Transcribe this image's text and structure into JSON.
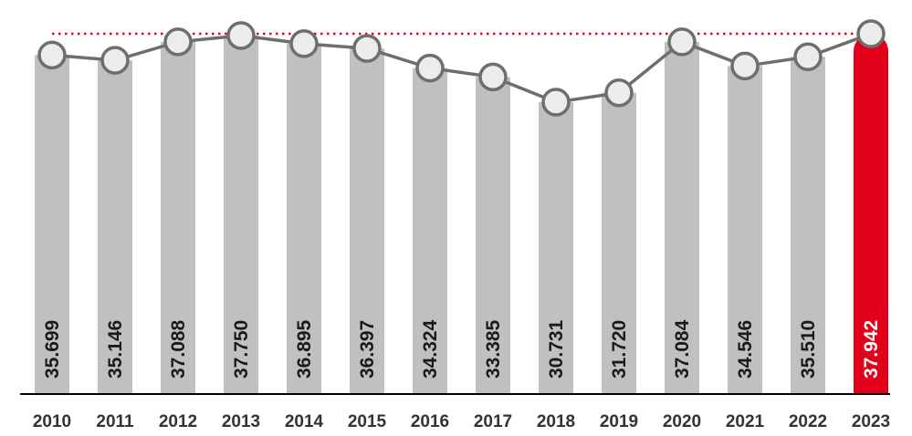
{
  "chart_data": {
    "type": "bar",
    "title": "",
    "xlabel": "",
    "ylabel": "",
    "categories": [
      "2010",
      "2011",
      "2012",
      "2013",
      "2014",
      "2015",
      "2016",
      "2017",
      "2018",
      "2019",
      "2020",
      "2021",
      "2022",
      "2023"
    ],
    "values": [
      35699,
      35146,
      37088,
      37750,
      36895,
      36397,
      34324,
      33385,
      30731,
      31720,
      37084,
      34546,
      35510,
      37942
    ],
    "value_labels": [
      "35.699",
      "35.146",
      "37.088",
      "37.750",
      "36.895",
      "36.397",
      "34.324",
      "33.385",
      "30.731",
      "31.720",
      "37.084",
      "34.546",
      "35.510",
      "37.942"
    ],
    "overlay": {
      "type": "line",
      "markers": "circle",
      "values": [
        35699,
        35146,
        37088,
        37750,
        36895,
        36397,
        34324,
        33385,
        30731,
        31720,
        37084,
        34546,
        35510,
        37942
      ]
    },
    "reference_line": {
      "value": 37942,
      "style": "dotted"
    },
    "highlight_index": 13,
    "grid": false,
    "legend": "none",
    "value_axis": "hidden"
  },
  "colors": {
    "bar": "#c0c0c0",
    "highlight_bar": "#e2001a",
    "line": "#6e6e6e",
    "marker_fill": "#ececec",
    "marker_stroke": "#6e6e6e",
    "reference_line": "#e2001a",
    "label_text": "#1a1a1a",
    "highlight_label_text": "#ffffff",
    "axis": "#000000",
    "tick_text": "#333333"
  }
}
